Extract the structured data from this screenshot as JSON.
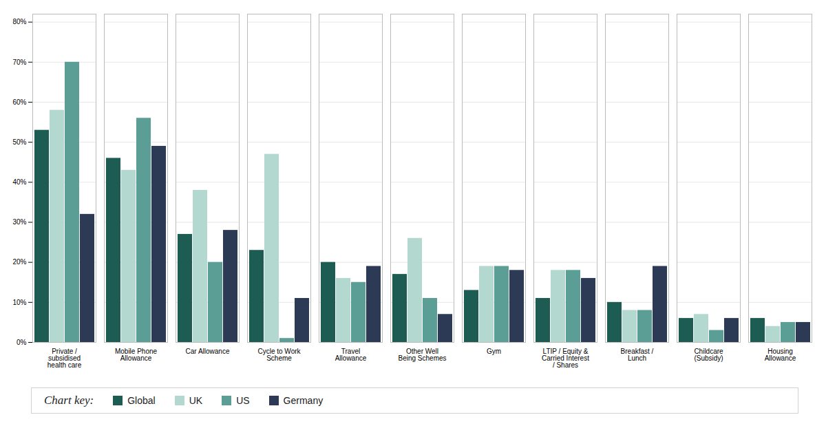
{
  "chart_data": {
    "type": "bar",
    "categories": [
      "Private /\nsubsidised\nhealth care",
      "Mobile Phone\nAllowance",
      "Car Allowance",
      "Cycle to Work\nScheme",
      "Travel\nAllowance",
      "Other Well\nBeing Schemes",
      "Gym",
      "LTIP / Equity &\nCarried Interest\n/ Shares",
      "Breakfast /\nLunch",
      "Childcare\n(Subsidy)",
      "Housing\nAllowance"
    ],
    "series": [
      {
        "name": "Global",
        "color": "#1d5c52",
        "values": [
          0.53,
          0.46,
          0.27,
          0.23,
          0.2,
          0.17,
          0.13,
          0.11,
          0.1,
          0.06,
          0.06
        ]
      },
      {
        "name": "UK",
        "color": "#b2d8d0",
        "values": [
          0.58,
          0.43,
          0.38,
          0.47,
          0.16,
          0.26,
          0.19,
          0.18,
          0.08,
          0.07,
          0.04
        ]
      },
      {
        "name": "US",
        "color": "#5a9e96",
        "values": [
          0.7,
          0.56,
          0.2,
          0.01,
          0.15,
          0.11,
          0.19,
          0.18,
          0.08,
          0.03,
          0.05
        ]
      },
      {
        "name": "Germany",
        "color": "#2d3a56",
        "values": [
          0.32,
          0.49,
          0.28,
          0.11,
          0.19,
          0.07,
          0.18,
          0.16,
          0.19,
          0.06,
          0.05
        ]
      }
    ],
    "ylim": [
      0,
      0.82
    ],
    "yticks": [
      {
        "value": 0.0,
        "label": "0%"
      },
      {
        "value": 0.1,
        "label": "10%"
      },
      {
        "value": 0.2,
        "label": "20%"
      },
      {
        "value": 0.3,
        "label": "30%"
      },
      {
        "value": 0.4,
        "label": "40%"
      },
      {
        "value": 0.5,
        "label": "50%"
      },
      {
        "value": 0.6,
        "label": "60%"
      },
      {
        "value": 0.7,
        "label": "70%"
      },
      {
        "value": 0.8,
        "label": "80%"
      }
    ],
    "grid": true,
    "legend": "bottom",
    "legend_title": "Chart key:"
  }
}
